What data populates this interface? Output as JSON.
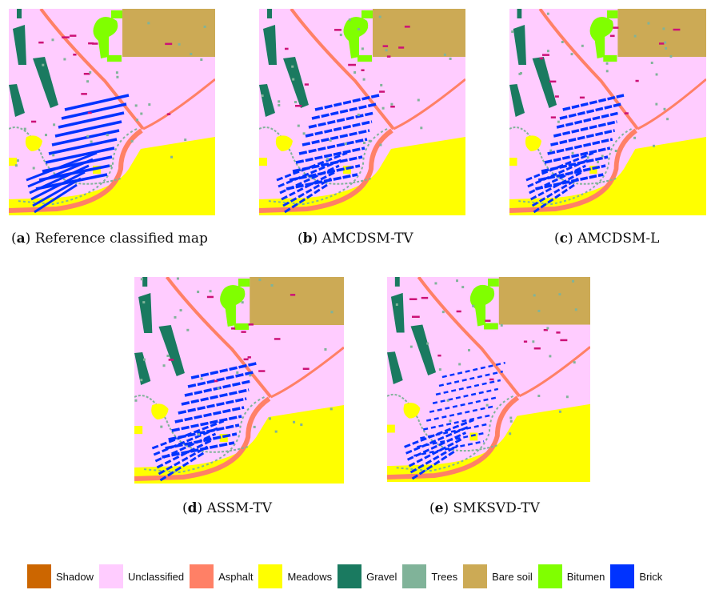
{
  "figure": {
    "panels": [
      {
        "letter": "a",
        "title": " Reference classified map",
        "variant": 0
      },
      {
        "letter": "b",
        "title": " AMCDSM-TV",
        "variant": 1
      },
      {
        "letter": "c",
        "title": " AMCDSM-L",
        "variant": 2
      },
      {
        "letter": "d",
        "title": " ASSM-TV",
        "variant": 3
      },
      {
        "letter": "e",
        "title": " SMKSVD-TV",
        "variant": 4
      }
    ],
    "legend": [
      {
        "label": "Shadow",
        "color": "#CC6600"
      },
      {
        "label": "Unclassified",
        "color": "#FFCCFF"
      },
      {
        "label": "Asphalt",
        "color": "#FF8066"
      },
      {
        "label": "Meadows",
        "color": "#FFFF00"
      },
      {
        "label": "Gravel",
        "color": "#1A7A60"
      },
      {
        "label": "Trees",
        "color": "#80B399"
      },
      {
        "label": "Bare soil",
        "color": "#CCAA55"
      },
      {
        "label": "Bitumen",
        "color": "#80FF00"
      },
      {
        "label": "Brick",
        "color": "#0033FF"
      }
    ]
  }
}
